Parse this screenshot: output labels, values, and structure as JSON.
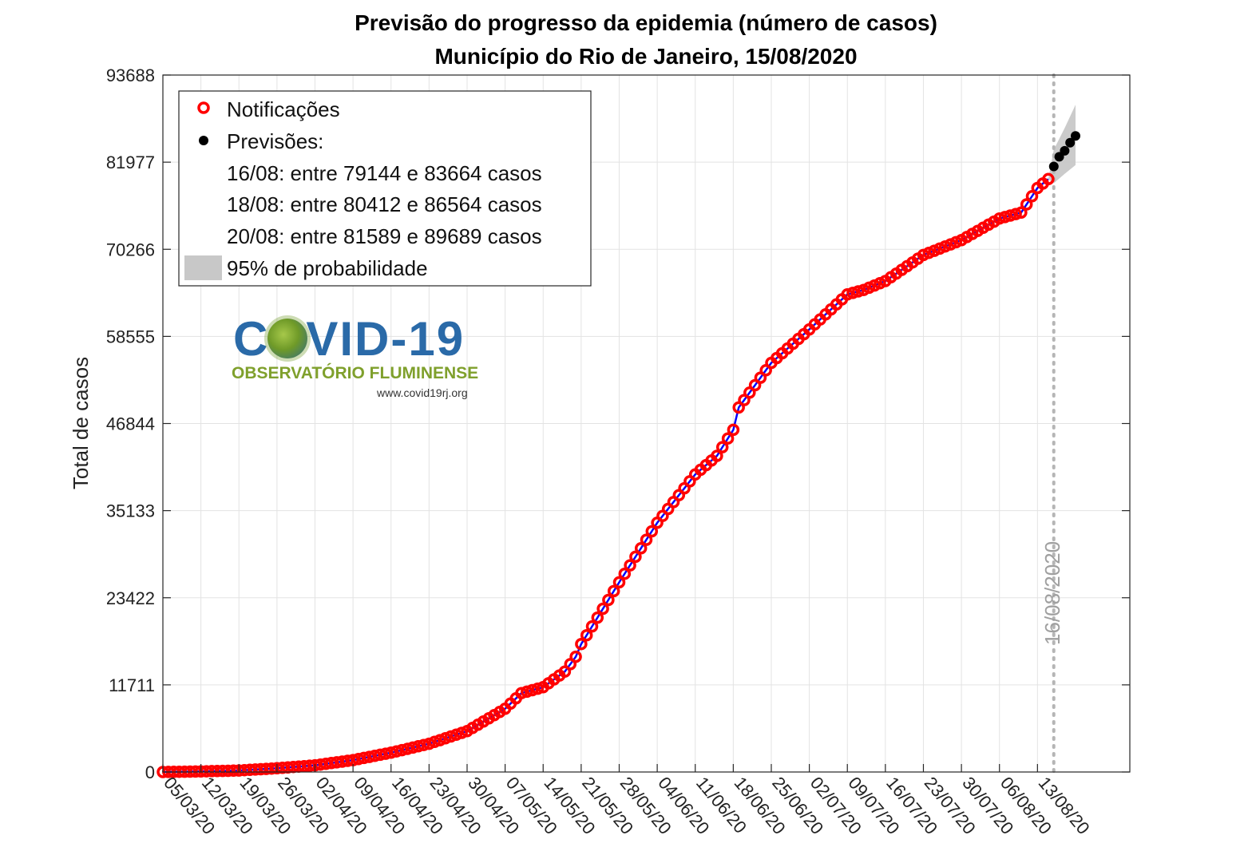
{
  "chart_data": {
    "type": "line",
    "title": "Previsão do progresso da epidemia (número de casos)",
    "subtitle": "Município do Rio de Janeiro, 15/08/2020",
    "ylabel": "Total de casos",
    "xlabel": "",
    "ylim": [
      0,
      93688
    ],
    "xlim": [
      "05/03/2020",
      "30/08/2020"
    ],
    "y_ticks": [
      "0",
      "11711",
      "23422",
      "35133",
      "46844",
      "58555",
      "70266",
      "81977",
      "93688"
    ],
    "x_ticks": [
      "05/03/20",
      "12/03/20",
      "19/03/20",
      "26/03/20",
      "02/04/20",
      "09/04/20",
      "16/04/20",
      "23/04/20",
      "30/04/20",
      "07/05/20",
      "14/05/20",
      "21/05/20",
      "28/05/20",
      "04/06/20",
      "11/06/20",
      "18/06/20",
      "25/06/20",
      "02/07/20",
      "09/07/20",
      "16/07/20",
      "23/07/20",
      "30/07/20",
      "06/08/20",
      "13/08/20"
    ],
    "grid": true,
    "legend_position": "top-left",
    "series": [
      {
        "name": "Notificações",
        "marker": "open-circle",
        "color": "#ff0000",
        "line_color": "#0000ff",
        "anchor_points": [
          [
            "05/03/2020",
            0
          ],
          [
            "12/03/2020",
            80
          ],
          [
            "19/03/2020",
            200
          ],
          [
            "26/03/2020",
            500
          ],
          [
            "02/04/2020",
            900
          ],
          [
            "09/04/2020",
            1600
          ],
          [
            "16/04/2020",
            2600
          ],
          [
            "23/04/2020",
            3800
          ],
          [
            "30/04/2020",
            5500
          ],
          [
            "07/05/2020",
            8500
          ],
          [
            "10/05/2020",
            10600
          ],
          [
            "14/05/2020",
            11400
          ],
          [
            "18/05/2020",
            13500
          ],
          [
            "20/05/2020",
            15500
          ],
          [
            "21/05/2020",
            17200
          ],
          [
            "28/05/2020",
            25500
          ],
          [
            "04/06/2020",
            33500
          ],
          [
            "11/06/2020",
            40000
          ],
          [
            "15/06/2020",
            42500
          ],
          [
            "18/06/2020",
            46000
          ],
          [
            "19/06/2020",
            49000
          ],
          [
            "25/06/2020",
            55000
          ],
          [
            "02/07/2020",
            59500
          ],
          [
            "09/07/2020",
            64200
          ],
          [
            "12/07/2020",
            64800
          ],
          [
            "16/07/2020",
            66000
          ],
          [
            "23/07/2020",
            69500
          ],
          [
            "30/07/2020",
            71500
          ],
          [
            "06/08/2020",
            74400
          ],
          [
            "10/08/2020",
            75200
          ],
          [
            "13/08/2020",
            78500
          ],
          [
            "15/08/2020",
            79700
          ]
        ]
      },
      {
        "name": "Previsões:",
        "marker": "filled-dot",
        "color": "#000000",
        "points": [
          [
            "16/08/2020",
            81400
          ],
          [
            "17/08/2020",
            82700
          ],
          [
            "18/08/2020",
            83500
          ],
          [
            "19/08/2020",
            84600
          ],
          [
            "20/08/2020",
            85500
          ]
        ]
      }
    ],
    "confidence_band": {
      "name": "95% de probabilidade",
      "color": "#c8c8c8",
      "lower": [
        [
          "15/08/2020",
          79700
        ],
        [
          "16/08/2020",
          79144
        ],
        [
          "18/08/2020",
          80412
        ],
        [
          "20/08/2020",
          81589
        ]
      ],
      "upper": [
        [
          "15/08/2020",
          79700
        ],
        [
          "16/08/2020",
          83664
        ],
        [
          "18/08/2020",
          86564
        ],
        [
          "20/08/2020",
          89689
        ]
      ]
    },
    "annotations": {
      "vertical_line_date": "16/08/2020",
      "vertical_line_label": "16/08/2020"
    }
  },
  "legend": {
    "notificacoes": "Notificações",
    "previsoes": "Previsões:",
    "line1": "16/08: entre 79144 e 83664 casos",
    "line2": "18/08: entre 80412 e 86564 casos",
    "line3": "20/08: entre 81589 e 89689 casos",
    "prob": "95% de probabilidade"
  },
  "logo": {
    "title_left": "C",
    "title_right": "VID-19",
    "subtitle": "OBSERVATÓRIO FLUMINENSE",
    "url": "www.covid19rj.org"
  },
  "colors": {
    "notifications_marker": "#ff0000",
    "notifications_line": "#0000ff",
    "forecast": "#000000",
    "band": "#c8c8c8",
    "logo_blue": "#2a6aa8",
    "logo_green": "#7fa02c"
  }
}
